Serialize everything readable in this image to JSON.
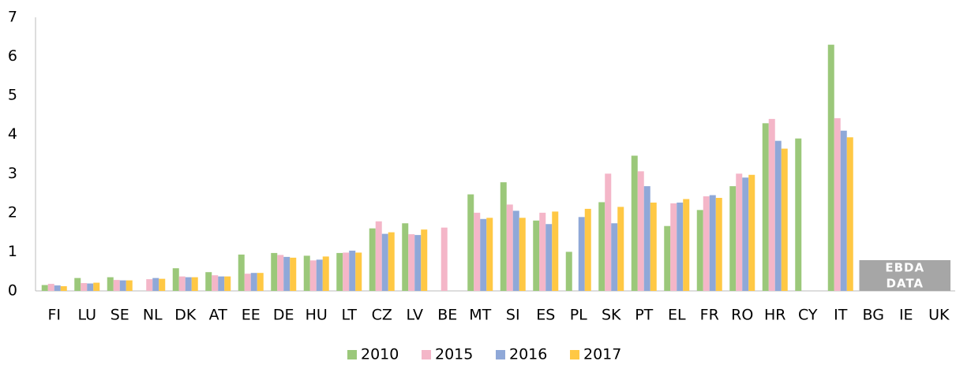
{
  "chart_data": {
    "type": "bar",
    "categories": [
      "FI",
      "LU",
      "SE",
      "NL",
      "DK",
      "AT",
      "EE",
      "DE",
      "HU",
      "LT",
      "CZ",
      "LV",
      "BE",
      "MT",
      "SI",
      "ES",
      "PL",
      "SK",
      "PT",
      "EL",
      "FR",
      "RO",
      "HR",
      "CY",
      "IT",
      "BG",
      "IE",
      "UK"
    ],
    "series": [
      {
        "name": "2010",
        "color": "#9bc87a",
        "values": [
          0.15,
          0.33,
          0.35,
          null,
          0.58,
          0.48,
          0.93,
          0.97,
          0.9,
          0.97,
          1.6,
          1.73,
          null,
          2.47,
          2.78,
          1.8,
          1.0,
          2.27,
          3.46,
          1.66,
          2.07,
          2.68,
          4.29,
          3.9,
          6.3,
          null,
          null,
          null
        ]
      },
      {
        "name": "2015",
        "color": "#f4b6c8",
        "values": [
          0.18,
          0.2,
          0.28,
          0.3,
          0.37,
          0.4,
          0.44,
          0.92,
          0.78,
          0.98,
          1.78,
          1.45,
          1.62,
          2.0,
          2.21,
          2.0,
          null,
          3.0,
          3.06,
          2.24,
          2.42,
          3.0,
          4.4,
          null,
          4.42,
          null,
          null,
          null
        ]
      },
      {
        "name": "2016",
        "color": "#8fa8d8",
        "values": [
          0.14,
          0.19,
          0.27,
          0.33,
          0.35,
          0.37,
          0.46,
          0.87,
          0.8,
          1.03,
          1.46,
          1.43,
          null,
          1.84,
          2.05,
          1.71,
          1.89,
          1.73,
          2.68,
          2.26,
          2.45,
          2.9,
          3.84,
          null,
          4.1,
          null,
          null,
          null
        ]
      },
      {
        "name": "2017",
        "color": "#ffc844",
        "values": [
          0.12,
          0.21,
          0.27,
          0.31,
          0.35,
          0.37,
          0.46,
          0.85,
          0.88,
          0.98,
          1.5,
          1.57,
          null,
          1.87,
          1.87,
          2.03,
          2.1,
          2.15,
          2.26,
          2.35,
          2.38,
          2.97,
          3.64,
          null,
          3.93,
          null,
          null,
          null
        ]
      }
    ],
    "ylim": [
      0,
      7
    ],
    "yticks": [
      0,
      1,
      2,
      3,
      4,
      5,
      6,
      7
    ],
    "grid": false,
    "legend": "bottom",
    "annotation_lines": [
      "EBDA",
      "DATA"
    ]
  }
}
